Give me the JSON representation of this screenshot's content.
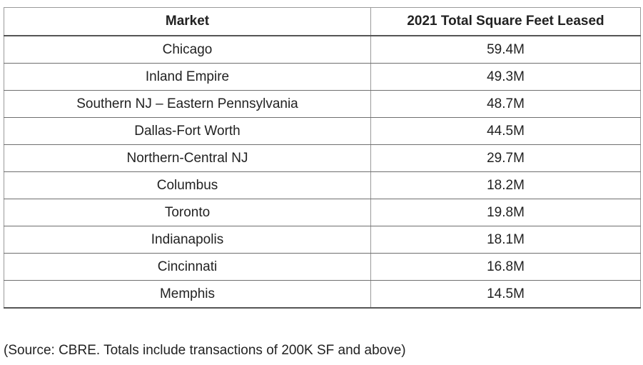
{
  "table": {
    "headers": [
      "Market",
      "2021 Total Square Feet Leased"
    ],
    "rows": [
      [
        "Chicago",
        "59.4M"
      ],
      [
        "Inland Empire",
        "49.3M"
      ],
      [
        "Southern NJ – Eastern Pennsylvania",
        "48.7M"
      ],
      [
        "Dallas-Fort Worth",
        "44.5M"
      ],
      [
        "Northern-Central NJ",
        "29.7M"
      ],
      [
        "Columbus",
        "18.2M"
      ],
      [
        "Toronto",
        "19.8M"
      ],
      [
        "Indianapolis",
        "18.1M"
      ],
      [
        "Cincinnati",
        "16.8M"
      ],
      [
        "Memphis",
        "14.5M"
      ]
    ]
  },
  "footnote": "(Source: CBRE. Totals include transactions of 200K SF and above)"
}
